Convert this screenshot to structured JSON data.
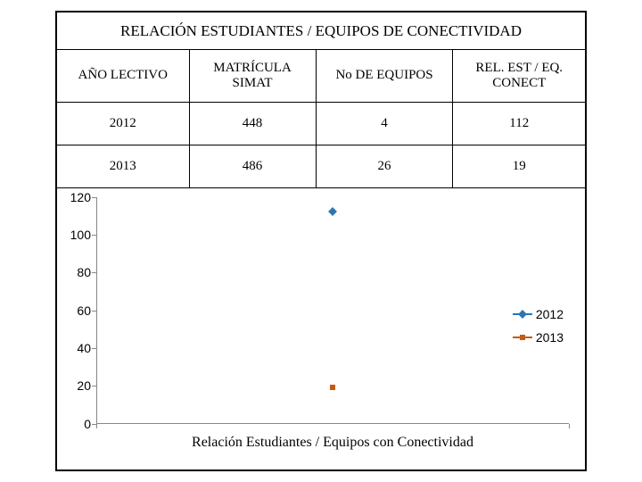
{
  "title": "RELACIÓN ESTUDIANTES / EQUIPOS DE CONECTIVIDAD",
  "columns": [
    "AÑO LECTIVO",
    "MATRÍCULA\nSIMAT",
    "No DE EQUIPOS",
    "REL. EST / EQ.\nCONECT"
  ],
  "rows": [
    [
      "2012",
      "448",
      "4",
      "112"
    ],
    [
      "2013",
      "486",
      "26",
      "19"
    ]
  ],
  "chart": {
    "type": "scatter",
    "ylim": [
      0,
      120
    ],
    "ytick_step": 20,
    "x_category": "Relación Estudiantes / Equipos con Conectividad",
    "series": [
      {
        "name": "2012",
        "color": "#2e75b6",
        "marker": "diamond",
        "marker_size": 7,
        "value": 112,
        "x_index": 0
      },
      {
        "name": "2013",
        "color": "#c55a11",
        "marker": "square",
        "marker_size": 6,
        "value": 19,
        "x_index": 0
      }
    ],
    "legend_position": "right",
    "background_color": "#ffffff",
    "axis_color": "#878787",
    "tick_fontsize": 14,
    "category_fontsize": 16
  }
}
